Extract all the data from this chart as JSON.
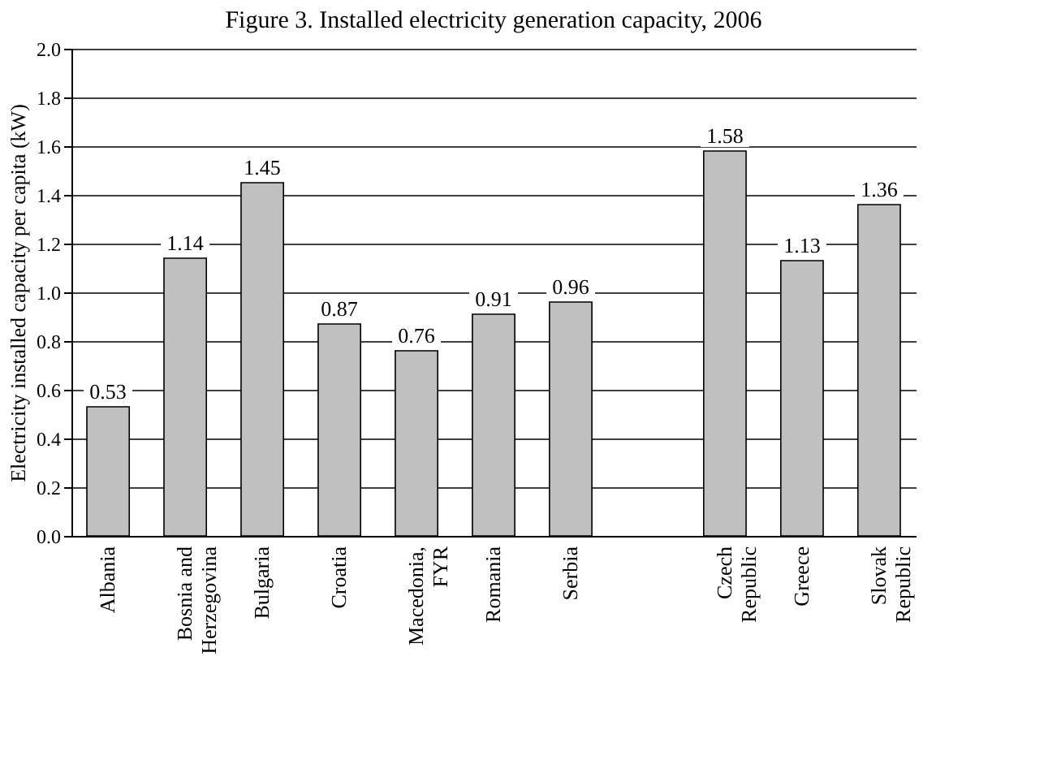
{
  "chart_data": {
    "type": "bar",
    "title": "Figure 3. Installed electricity generation capacity, 2006",
    "ylabel": "Electricity installed capacity per capita (kW)",
    "categories": [
      "Albania",
      "Bosnia and\nHerzegovina",
      "Bulgaria",
      "Croatia",
      "Macedonia,\nFYR",
      "Romania",
      "Serbia",
      null,
      "Czech\nRepublic",
      "Greece",
      "Slovak\nRepublic"
    ],
    "series": [
      {
        "color": "#c0c0c0",
        "values": [
          0.53,
          1.14,
          1.45,
          0.87,
          0.76,
          0.91,
          0.96,
          null,
          1.58,
          1.13,
          1.36
        ]
      }
    ],
    "ylim": [
      0,
      2.0
    ],
    "yticks": [
      {
        "value": 0,
        "label": "0.0"
      },
      {
        "value": 0.2,
        "label": "0.2"
      },
      {
        "value": 0.4,
        "label": "0.4"
      },
      {
        "value": 0.6,
        "label": "0.6"
      },
      {
        "value": 0.8,
        "label": "0.8"
      },
      {
        "value": 1.0,
        "label": "1.0"
      },
      {
        "value": 1.2,
        "label": "1.2"
      },
      {
        "value": 1.4,
        "label": "1.4"
      },
      {
        "value": 1.6,
        "label": "1.6"
      },
      {
        "value": 1.8,
        "label": "1.8"
      },
      {
        "value": 2.0,
        "label": "2.0"
      }
    ],
    "grid": "y",
    "data_labels": true
  }
}
